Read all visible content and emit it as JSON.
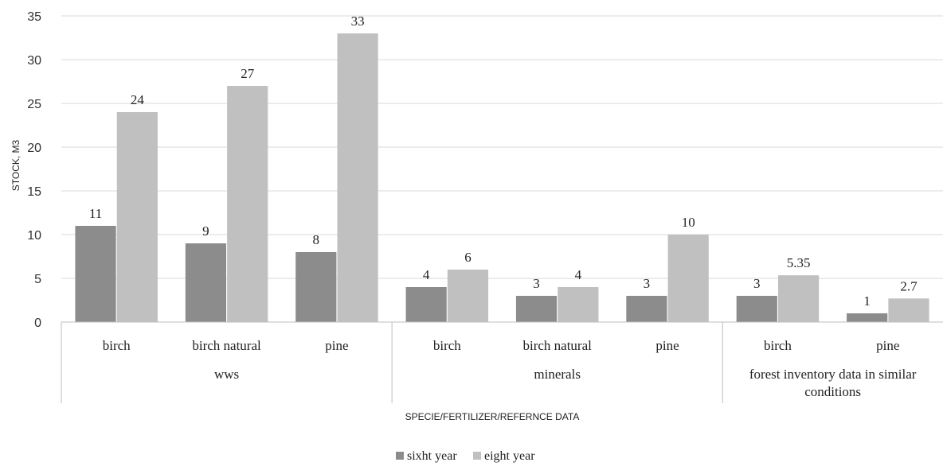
{
  "chart_data": {
    "type": "bar",
    "title": "",
    "ylabel": "STOCK, M3",
    "xlabel": "SPECIE/FERTILIZER/REFERNCE DATA",
    "ylim": [
      0,
      35
    ],
    "yticks": [
      0,
      5,
      10,
      15,
      20,
      25,
      30,
      35
    ],
    "grid": true,
    "legend_position": "bottom",
    "groups": [
      {
        "label": "wws",
        "categories": [
          "birch",
          "birch natural",
          "pine"
        ]
      },
      {
        "label": "minerals",
        "categories": [
          "birch",
          "birch natural",
          "pine"
        ]
      },
      {
        "label_lines": [
          "forest inventory data in similar",
          "conditions"
        ],
        "categories": [
          "birch",
          "pine"
        ]
      }
    ],
    "series": [
      {
        "name": "sixht year",
        "color": "#8c8c8c",
        "values": [
          11,
          9,
          8,
          4,
          3,
          3,
          3,
          1
        ],
        "labels": [
          "11",
          "9",
          "8",
          "4",
          "3",
          "3",
          "3",
          "1"
        ]
      },
      {
        "name": "eight year",
        "color": "#c0c0c0",
        "values": [
          24,
          27,
          33,
          6,
          4,
          10,
          5.35,
          2.7
        ],
        "labels": [
          "24",
          "27",
          "33",
          "6",
          "4",
          "10",
          "5.35",
          "2.7"
        ]
      }
    ]
  }
}
